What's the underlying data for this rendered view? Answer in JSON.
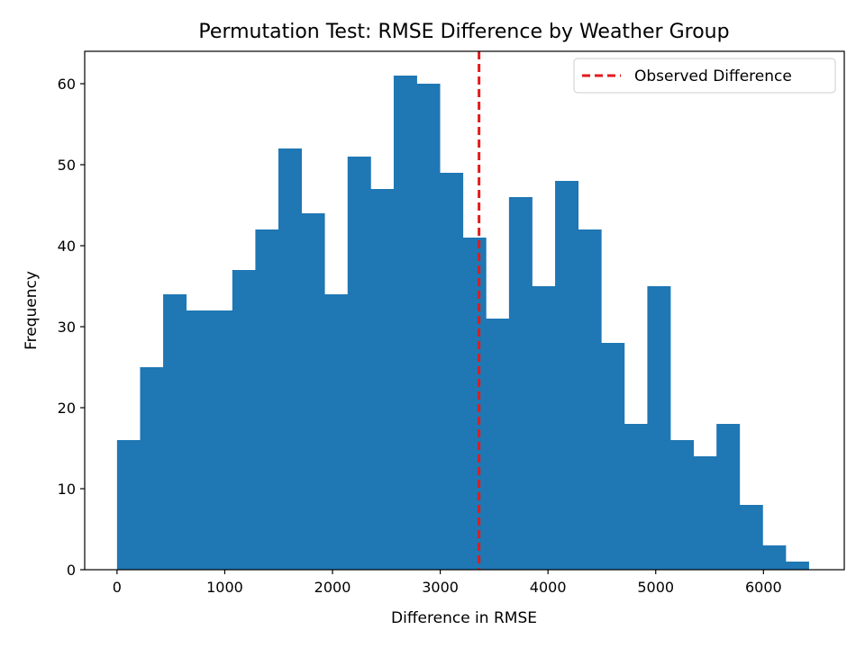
{
  "chart_data": {
    "type": "bar",
    "title": "Permutation Test: RMSE Difference by Weather Group",
    "xlabel": "Difference in RMSE",
    "ylabel": "Frequency",
    "bin_edges": [
      0,
      214,
      428,
      642,
      856,
      1070,
      1284,
      1498,
      1712,
      1926,
      2140,
      2354,
      2568,
      2782,
      2996,
      3210,
      3424,
      3638,
      3852,
      4066,
      4280,
      4494,
      4708,
      4922,
      5136,
      5350,
      5564,
      5778,
      5992,
      6206,
      6420
    ],
    "values": [
      16,
      25,
      34,
      32,
      32,
      37,
      42,
      52,
      44,
      34,
      51,
      47,
      61,
      60,
      49,
      41,
      31,
      46,
      35,
      48,
      42,
      28,
      18,
      35,
      16,
      14,
      18,
      8,
      3,
      1
    ],
    "xlim": [
      -300,
      6750
    ],
    "ylim": [
      0,
      64
    ],
    "xticks": [
      0,
      1000,
      2000,
      3000,
      4000,
      5000,
      6000
    ],
    "xtick_labels": [
      "0",
      "1000",
      "2000",
      "3000",
      "4000",
      "5000",
      "6000"
    ],
    "yticks": [
      0,
      10,
      20,
      30,
      40,
      50,
      60
    ],
    "ytick_labels": [
      "0",
      "10",
      "20",
      "30",
      "40",
      "50",
      "60"
    ],
    "observed_difference": 3360,
    "legend": {
      "label": "Observed Difference",
      "placement": "top-right"
    },
    "colors": {
      "bars": "#1f77b4",
      "observed_line": "#e41a1c"
    },
    "grid": false
  }
}
